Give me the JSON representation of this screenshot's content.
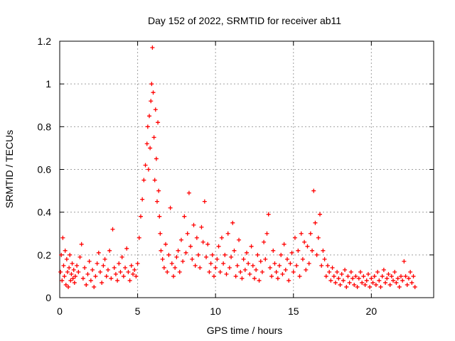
{
  "chart_data": {
    "type": "scatter",
    "title": "Day 152 of 2022, SRMTID for receiver ab11",
    "xlabel": "GPS time / hours",
    "ylabel": "SRMTID / TECUs",
    "xlim": [
      0,
      24
    ],
    "ylim": [
      0,
      1.2
    ],
    "x_ticks": [
      0,
      5,
      10,
      15,
      20
    ],
    "x_tick_labels": [
      "0",
      "5",
      "10",
      "15",
      "20"
    ],
    "y_ticks": [
      0,
      0.2,
      0.4,
      0.6,
      0.8,
      1.0,
      1.2
    ],
    "y_tick_labels": [
      "0",
      "0.2",
      "0.4",
      "0.6",
      "0.8",
      "1",
      "1.2"
    ],
    "grid": true,
    "marker": "plus",
    "series": [
      {
        "name": "SRMTID",
        "color": "#ff0000",
        "points": [
          [
            0.05,
            0.12
          ],
          [
            0.1,
            0.2
          ],
          [
            0.15,
            0.08
          ],
          [
            0.2,
            0.28
          ],
          [
            0.25,
            0.15
          ],
          [
            0.3,
            0.1
          ],
          [
            0.35,
            0.22
          ],
          [
            0.4,
            0.06
          ],
          [
            0.45,
            0.18
          ],
          [
            0.5,
            0.12
          ],
          [
            0.55,
            0.05
          ],
          [
            0.6,
            0.14
          ],
          [
            0.65,
            0.2
          ],
          [
            0.7,
            0.08
          ],
          [
            0.75,
            0.11
          ],
          [
            0.8,
            0.16
          ],
          [
            0.85,
            0.09
          ],
          [
            0.9,
            0.13
          ],
          [
            0.95,
            0.07
          ],
          [
            1.0,
            0.1
          ],
          [
            1.1,
            0.15
          ],
          [
            1.2,
            0.12
          ],
          [
            1.3,
            0.19
          ],
          [
            1.4,
            0.25
          ],
          [
            1.5,
            0.09
          ],
          [
            1.6,
            0.14
          ],
          [
            1.7,
            0.06
          ],
          [
            1.8,
            0.11
          ],
          [
            1.9,
            0.17
          ],
          [
            2.0,
            0.08
          ],
          [
            2.1,
            0.13
          ],
          [
            2.2,
            0.05
          ],
          [
            2.3,
            0.1
          ],
          [
            2.4,
            0.16
          ],
          [
            2.5,
            0.21
          ],
          [
            2.6,
            0.12
          ],
          [
            2.7,
            0.07
          ],
          [
            2.8,
            0.15
          ],
          [
            2.9,
            0.18
          ],
          [
            3.0,
            0.1
          ],
          [
            3.1,
            0.13
          ],
          [
            3.2,
            0.22
          ],
          [
            3.3,
            0.09
          ],
          [
            3.4,
            0.32
          ],
          [
            3.5,
            0.14
          ],
          [
            3.6,
            0.11
          ],
          [
            3.7,
            0.08
          ],
          [
            3.8,
            0.16
          ],
          [
            3.9,
            0.12
          ],
          [
            4.0,
            0.19
          ],
          [
            4.1,
            0.1
          ],
          [
            4.2,
            0.14
          ],
          [
            4.3,
            0.23
          ],
          [
            4.4,
            0.12
          ],
          [
            4.5,
            0.08
          ],
          [
            4.6,
            0.15
          ],
          [
            4.7,
            0.11
          ],
          [
            4.8,
            0.13
          ],
          [
            4.9,
            0.1
          ],
          [
            5.0,
            0.16
          ],
          [
            5.1,
            0.28
          ],
          [
            5.2,
            0.38
          ],
          [
            5.3,
            0.46
          ],
          [
            5.4,
            0.55
          ],
          [
            5.5,
            0.62
          ],
          [
            5.6,
            0.72
          ],
          [
            5.65,
            0.8
          ],
          [
            5.7,
            0.6
          ],
          [
            5.75,
            0.85
          ],
          [
            5.8,
            0.7
          ],
          [
            5.85,
            0.92
          ],
          [
            5.9,
            1.0
          ],
          [
            5.95,
            1.17
          ],
          [
            6.0,
            0.96
          ],
          [
            6.05,
            0.75
          ],
          [
            6.1,
            0.55
          ],
          [
            6.15,
            0.88
          ],
          [
            6.2,
            0.65
          ],
          [
            6.25,
            0.45
          ],
          [
            6.3,
            0.82
          ],
          [
            6.35,
            0.5
          ],
          [
            6.4,
            0.38
          ],
          [
            6.45,
            0.3
          ],
          [
            6.5,
            0.22
          ],
          [
            6.6,
            0.18
          ],
          [
            6.7,
            0.14
          ],
          [
            6.8,
            0.25
          ],
          [
            6.9,
            0.12
          ],
          [
            7.0,
            0.2
          ],
          [
            7.1,
            0.42
          ],
          [
            7.2,
            0.16
          ],
          [
            7.3,
            0.1
          ],
          [
            7.4,
            0.14
          ],
          [
            7.5,
            0.19
          ],
          [
            7.6,
            0.22
          ],
          [
            7.7,
            0.12
          ],
          [
            7.8,
            0.27
          ],
          [
            7.9,
            0.17
          ],
          [
            8.0,
            0.38
          ],
          [
            8.1,
            0.21
          ],
          [
            8.2,
            0.3
          ],
          [
            8.3,
            0.49
          ],
          [
            8.4,
            0.24
          ],
          [
            8.5,
            0.18
          ],
          [
            8.6,
            0.34
          ],
          [
            8.7,
            0.15
          ],
          [
            8.8,
            0.28
          ],
          [
            8.9,
            0.2
          ],
          [
            9.0,
            0.14
          ],
          [
            9.1,
            0.33
          ],
          [
            9.2,
            0.26
          ],
          [
            9.3,
            0.45
          ],
          [
            9.4,
            0.19
          ],
          [
            9.5,
            0.25
          ],
          [
            9.6,
            0.12
          ],
          [
            9.7,
            0.16
          ],
          [
            9.8,
            0.2
          ],
          [
            9.9,
            0.1
          ],
          [
            10.0,
            0.14
          ],
          [
            10.1,
            0.18
          ],
          [
            10.2,
            0.24
          ],
          [
            10.3,
            0.12
          ],
          [
            10.4,
            0.28
          ],
          [
            10.5,
            0.16
          ],
          [
            10.6,
            0.2
          ],
          [
            10.7,
            0.11
          ],
          [
            10.8,
            0.3
          ],
          [
            10.9,
            0.14
          ],
          [
            11.0,
            0.19
          ],
          [
            11.1,
            0.35
          ],
          [
            11.2,
            0.22
          ],
          [
            11.3,
            0.1
          ],
          [
            11.4,
            0.15
          ],
          [
            11.5,
            0.27
          ],
          [
            11.6,
            0.12
          ],
          [
            11.7,
            0.09
          ],
          [
            11.8,
            0.18
          ],
          [
            11.9,
            0.13
          ],
          [
            12.0,
            0.21
          ],
          [
            12.1,
            0.16
          ],
          [
            12.2,
            0.11
          ],
          [
            12.3,
            0.24
          ],
          [
            12.4,
            0.15
          ],
          [
            12.5,
            0.09
          ],
          [
            12.6,
            0.13
          ],
          [
            12.7,
            0.2
          ],
          [
            12.8,
            0.08
          ],
          [
            12.9,
            0.17
          ],
          [
            13.0,
            0.12
          ],
          [
            13.1,
            0.26
          ],
          [
            13.2,
            0.18
          ],
          [
            13.3,
            0.3
          ],
          [
            13.4,
            0.39
          ],
          [
            13.5,
            0.14
          ],
          [
            13.6,
            0.1
          ],
          [
            13.7,
            0.22
          ],
          [
            13.8,
            0.16
          ],
          [
            13.9,
            0.12
          ],
          [
            14.0,
            0.09
          ],
          [
            14.1,
            0.15
          ],
          [
            14.2,
            0.2
          ],
          [
            14.3,
            0.11
          ],
          [
            14.4,
            0.25
          ],
          [
            14.5,
            0.13
          ],
          [
            14.6,
            0.18
          ],
          [
            14.7,
            0.08
          ],
          [
            14.8,
            0.16
          ],
          [
            14.9,
            0.21
          ],
          [
            15.0,
            0.12
          ],
          [
            15.1,
            0.28
          ],
          [
            15.2,
            0.15
          ],
          [
            15.3,
            0.22
          ],
          [
            15.4,
            0.1
          ],
          [
            15.5,
            0.3
          ],
          [
            15.6,
            0.18
          ],
          [
            15.7,
            0.26
          ],
          [
            15.8,
            0.13
          ],
          [
            15.9,
            0.24
          ],
          [
            16.0,
            0.16
          ],
          [
            16.1,
            0.3
          ],
          [
            16.2,
            0.22
          ],
          [
            16.3,
            0.5
          ],
          [
            16.4,
            0.35
          ],
          [
            16.5,
            0.2
          ],
          [
            16.6,
            0.28
          ],
          [
            16.7,
            0.39
          ],
          [
            16.8,
            0.15
          ],
          [
            16.9,
            0.22
          ],
          [
            17.0,
            0.18
          ],
          [
            17.1,
            0.1
          ],
          [
            17.2,
            0.15
          ],
          [
            17.3,
            0.12
          ],
          [
            17.4,
            0.08
          ],
          [
            17.5,
            0.14
          ],
          [
            17.6,
            0.1
          ],
          [
            17.7,
            0.07
          ],
          [
            17.8,
            0.12
          ],
          [
            17.9,
            0.09
          ],
          [
            18.0,
            0.06
          ],
          [
            18.1,
            0.11
          ],
          [
            18.2,
            0.08
          ],
          [
            18.3,
            0.13
          ],
          [
            18.4,
            0.05
          ],
          [
            18.5,
            0.1
          ],
          [
            18.6,
            0.07
          ],
          [
            18.7,
            0.12
          ],
          [
            18.8,
            0.09
          ],
          [
            18.9,
            0.06
          ],
          [
            19.0,
            0.1
          ],
          [
            19.1,
            0.05
          ],
          [
            19.2,
            0.09
          ],
          [
            19.3,
            0.12
          ],
          [
            19.4,
            0.07
          ],
          [
            19.5,
            0.1
          ],
          [
            19.6,
            0.06
          ],
          [
            19.7,
            0.08
          ],
          [
            19.8,
            0.11
          ],
          [
            19.9,
            0.05
          ],
          [
            20.0,
            0.09
          ],
          [
            20.1,
            0.07
          ],
          [
            20.2,
            0.1
          ],
          [
            20.3,
            0.06
          ],
          [
            20.4,
            0.12
          ],
          [
            20.5,
            0.08
          ],
          [
            20.6,
            0.05
          ],
          [
            20.7,
            0.1
          ],
          [
            20.8,
            0.13
          ],
          [
            20.9,
            0.07
          ],
          [
            21.0,
            0.09
          ],
          [
            21.1,
            0.11
          ],
          [
            21.2,
            0.06
          ],
          [
            21.3,
            0.1
          ],
          [
            21.4,
            0.08
          ],
          [
            21.5,
            0.12
          ],
          [
            21.6,
            0.07
          ],
          [
            21.7,
            0.09
          ],
          [
            21.8,
            0.05
          ],
          [
            21.9,
            0.1
          ],
          [
            22.0,
            0.08
          ],
          [
            22.1,
            0.17
          ],
          [
            22.2,
            0.1
          ],
          [
            22.3,
            0.06
          ],
          [
            22.4,
            0.09
          ],
          [
            22.5,
            0.12
          ],
          [
            22.6,
            0.07
          ],
          [
            22.7,
            0.1
          ],
          [
            22.8,
            0.05
          ]
        ]
      }
    ]
  }
}
